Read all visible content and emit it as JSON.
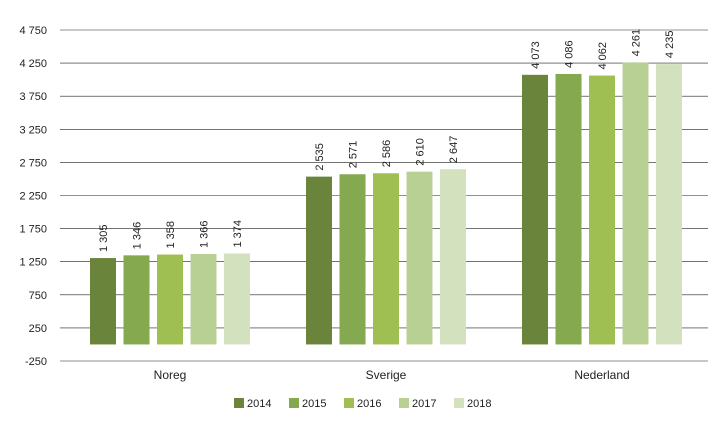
{
  "chart_data": {
    "type": "bar",
    "title": "",
    "xlabel": "",
    "ylabel": "",
    "categories": [
      "Noreg",
      "Sverige",
      "Nederland"
    ],
    "series": [
      {
        "name": "2014",
        "color": "#6a843c",
        "values": [
          1305,
          2535,
          4073
        ]
      },
      {
        "name": "2015",
        "color": "#85a94e",
        "values": [
          1346,
          2571,
          4086
        ]
      },
      {
        "name": "2016",
        "color": "#9fbf52",
        "values": [
          1358,
          2586,
          4062
        ]
      },
      {
        "name": "2017",
        "color": "#b8d094",
        "values": [
          1366,
          2610,
          4261
        ]
      },
      {
        "name": "2018",
        "color": "#d3e1bf",
        "values": [
          1374,
          2647,
          4235
        ]
      }
    ],
    "ylim": [
      -250,
      4750
    ],
    "yticks": [
      -250,
      250,
      750,
      1250,
      1750,
      2250,
      2750,
      3250,
      3750,
      4250,
      4750
    ],
    "ytick_labels": [
      "-250",
      "250",
      "750",
      "1 250",
      "1 750",
      "2 250",
      "2 750",
      "3 250",
      "3 750",
      "4 250",
      "4 750"
    ],
    "data_labels": [
      [
        "1 305",
        "2 535",
        "4 073"
      ],
      [
        "1 346",
        "2 571",
        "4 086"
      ],
      [
        "1 358",
        "2 586",
        "4 062"
      ],
      [
        "1 366",
        "2 610",
        "4 261"
      ],
      [
        "1 374",
        "2 647",
        "4 235"
      ]
    ],
    "grid": true,
    "legend_position": "bottom"
  }
}
